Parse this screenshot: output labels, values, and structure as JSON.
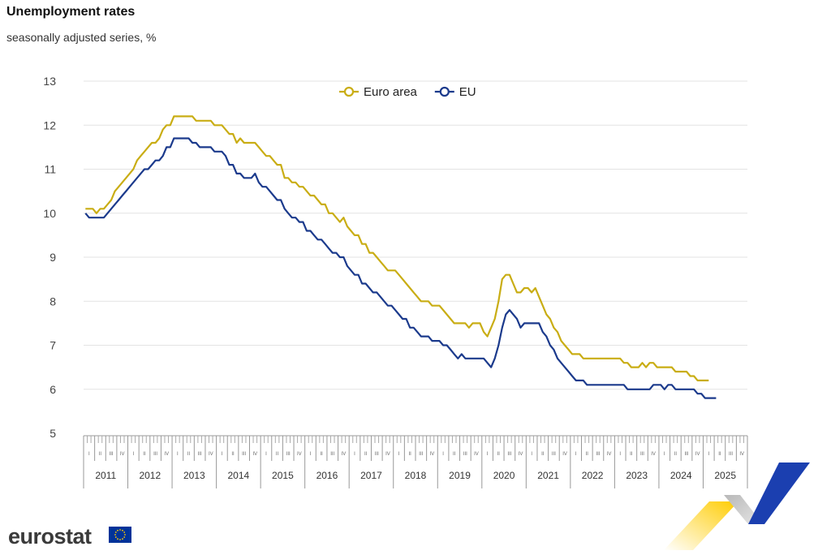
{
  "chart_data": {
    "type": "line",
    "title": "Unemployment rates",
    "subtitle": "seasonally adjusted series, %",
    "ylim": [
      5,
      13
    ],
    "yticks": [
      5,
      6,
      7,
      8,
      9,
      10,
      11,
      12,
      13
    ],
    "years": [
      "2011",
      "2012",
      "2013",
      "2014",
      "2015",
      "2016",
      "2017",
      "2018",
      "2019",
      "2020",
      "2021",
      "2022",
      "2023",
      "2024",
      "2025"
    ],
    "quarter_labels": [
      "I",
      "II",
      "III",
      "IV"
    ],
    "x_start": "2011-01",
    "legend_position": "top-center",
    "series": [
      {
        "name": "Euro area",
        "color": "#c9ad14",
        "values": [
          10.1,
          10.1,
          10.1,
          10.0,
          10.1,
          10.1,
          10.2,
          10.3,
          10.5,
          10.6,
          10.7,
          10.8,
          10.9,
          11.0,
          11.2,
          11.3,
          11.4,
          11.5,
          11.6,
          11.6,
          11.7,
          11.9,
          12.0,
          12.0,
          12.2,
          12.2,
          12.2,
          12.2,
          12.2,
          12.2,
          12.1,
          12.1,
          12.1,
          12.1,
          12.1,
          12.0,
          12.0,
          12.0,
          11.9,
          11.8,
          11.8,
          11.6,
          11.7,
          11.6,
          11.6,
          11.6,
          11.6,
          11.5,
          11.4,
          11.3,
          11.3,
          11.2,
          11.1,
          11.1,
          10.8,
          10.8,
          10.7,
          10.7,
          10.6,
          10.6,
          10.5,
          10.4,
          10.4,
          10.3,
          10.2,
          10.2,
          10.0,
          10.0,
          9.9,
          9.8,
          9.9,
          9.7,
          9.6,
          9.5,
          9.5,
          9.3,
          9.3,
          9.1,
          9.1,
          9.0,
          8.9,
          8.8,
          8.7,
          8.7,
          8.7,
          8.6,
          8.5,
          8.4,
          8.3,
          8.2,
          8.1,
          8.0,
          8.0,
          8.0,
          7.9,
          7.9,
          7.9,
          7.8,
          7.7,
          7.6,
          7.5,
          7.5,
          7.5,
          7.5,
          7.4,
          7.5,
          7.5,
          7.5,
          7.3,
          7.2,
          7.4,
          7.6,
          8.0,
          8.5,
          8.6,
          8.6,
          8.4,
          8.2,
          8.2,
          8.3,
          8.3,
          8.2,
          8.3,
          8.1,
          7.9,
          7.7,
          7.6,
          7.4,
          7.3,
          7.1,
          7.0,
          6.9,
          6.8,
          6.8,
          6.8,
          6.7,
          6.7,
          6.7,
          6.7,
          6.7,
          6.7,
          6.7,
          6.7,
          6.7,
          6.7,
          6.7,
          6.6,
          6.6,
          6.5,
          6.5,
          6.5,
          6.6,
          6.5,
          6.6,
          6.6,
          6.5,
          6.5,
          6.5,
          6.5,
          6.5,
          6.4,
          6.4,
          6.4,
          6.4,
          6.3,
          6.3,
          6.2,
          6.2,
          6.2,
          6.2
        ]
      },
      {
        "name": "EU",
        "color": "#1b3a8c",
        "values": [
          10.0,
          9.9,
          9.9,
          9.9,
          9.9,
          9.9,
          10.0,
          10.1,
          10.2,
          10.3,
          10.4,
          10.5,
          10.6,
          10.7,
          10.8,
          10.9,
          11.0,
          11.0,
          11.1,
          11.2,
          11.2,
          11.3,
          11.5,
          11.5,
          11.7,
          11.7,
          11.7,
          11.7,
          11.7,
          11.6,
          11.6,
          11.5,
          11.5,
          11.5,
          11.5,
          11.4,
          11.4,
          11.4,
          11.3,
          11.1,
          11.1,
          10.9,
          10.9,
          10.8,
          10.8,
          10.8,
          10.9,
          10.7,
          10.6,
          10.6,
          10.5,
          10.4,
          10.3,
          10.3,
          10.1,
          10.0,
          9.9,
          9.9,
          9.8,
          9.8,
          9.6,
          9.6,
          9.5,
          9.4,
          9.4,
          9.3,
          9.2,
          9.1,
          9.1,
          9.0,
          9.0,
          8.8,
          8.7,
          8.6,
          8.6,
          8.4,
          8.4,
          8.3,
          8.2,
          8.2,
          8.1,
          8.0,
          7.9,
          7.9,
          7.8,
          7.7,
          7.6,
          7.6,
          7.4,
          7.4,
          7.3,
          7.2,
          7.2,
          7.2,
          7.1,
          7.1,
          7.1,
          7.0,
          7.0,
          6.9,
          6.8,
          6.7,
          6.8,
          6.7,
          6.7,
          6.7,
          6.7,
          6.7,
          6.7,
          6.6,
          6.5,
          6.7,
          7.0,
          7.4,
          7.7,
          7.8,
          7.7,
          7.6,
          7.4,
          7.5,
          7.5,
          7.5,
          7.5,
          7.5,
          7.3,
          7.2,
          7.0,
          6.9,
          6.7,
          6.6,
          6.5,
          6.4,
          6.3,
          6.2,
          6.2,
          6.2,
          6.1,
          6.1,
          6.1,
          6.1,
          6.1,
          6.1,
          6.1,
          6.1,
          6.1,
          6.1,
          6.1,
          6.0,
          6.0,
          6.0,
          6.0,
          6.0,
          6.0,
          6.0,
          6.1,
          6.1,
          6.1,
          6.0,
          6.1,
          6.1,
          6.0,
          6.0,
          6.0,
          6.0,
          6.0,
          6.0,
          5.9,
          5.9,
          5.8,
          5.8,
          5.8,
          5.8
        ]
      }
    ]
  },
  "logo": {
    "text": "eurostat",
    "flag_color": "#003399",
    "star_color": "#ffcc00"
  }
}
